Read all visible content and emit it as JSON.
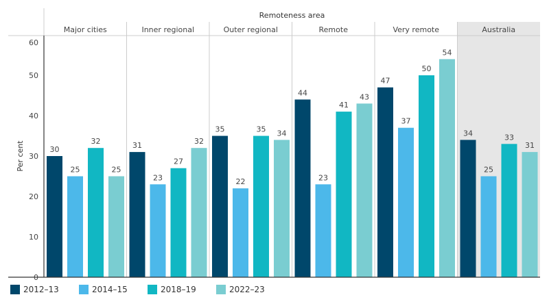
{
  "chart_data": {
    "type": "bar",
    "title": "",
    "column_header": "Remoteness area",
    "ylabel": "Per cent",
    "ylim": [
      0,
      60
    ],
    "yticks": [
      0,
      10,
      20,
      30,
      40,
      50,
      60
    ],
    "categories": [
      "Major cities",
      "Inner regional",
      "Outer regional",
      "Remote",
      "Very remote",
      "Australia"
    ],
    "highlight_category": "Australia",
    "series": [
      {
        "name": "2012–13",
        "color": "#00476b",
        "values": [
          30,
          31,
          35,
          44,
          47,
          34
        ]
      },
      {
        "name": "2014–15",
        "color": "#4cb8ea",
        "values": [
          25,
          23,
          22,
          23,
          37,
          25
        ]
      },
      {
        "name": "2018–19",
        "color": "#11b7c3",
        "values": [
          32,
          27,
          35,
          41,
          50,
          33
        ]
      },
      {
        "name": "2022–23",
        "color": "#7acdd1",
        "values": [
          25,
          32,
          34,
          43,
          54,
          31
        ]
      }
    ],
    "legend_position": "bottom-left",
    "grid": false
  }
}
